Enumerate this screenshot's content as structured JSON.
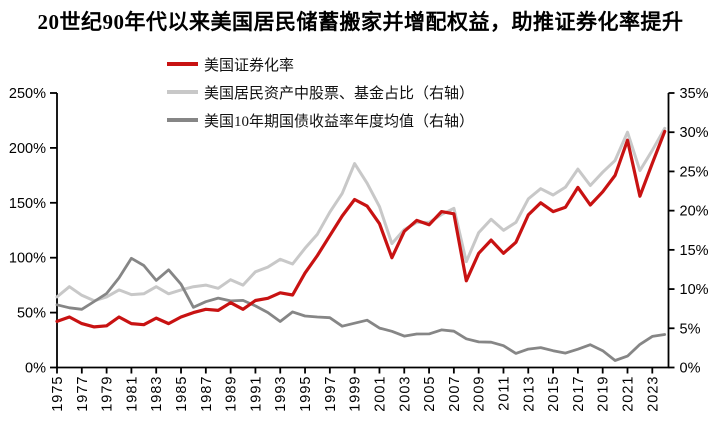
{
  "title": "20世纪90年代以来美国居民储蓄搬家并增配权益，助推证券化率提升",
  "colors": {
    "background": "#FFFFFF",
    "axis": "#000000",
    "series_red": "#C81212",
    "series_light_gray": "#C8C8C8",
    "series_dark_gray": "#868686"
  },
  "legend": {
    "items": [
      {
        "label": "美国证券化率"
      },
      {
        "label": "美国居民资产中股票、基金占比（右轴）"
      },
      {
        "label": "美国10年期国债收益率年度均值（右轴）"
      }
    ]
  },
  "chart_data": {
    "type": "line",
    "title": "20世纪90年代以来美国居民储蓄搬家并增配权益，助推证券化率提升",
    "xlabel": "",
    "ylabel": "",
    "grid": false,
    "legend_position": "top-left",
    "x": [
      1975,
      1976,
      1977,
      1978,
      1979,
      1980,
      1981,
      1982,
      1983,
      1984,
      1985,
      1986,
      1987,
      1988,
      1989,
      1990,
      1991,
      1992,
      1993,
      1994,
      1995,
      1996,
      1997,
      1998,
      1999,
      2000,
      2001,
      2002,
      2003,
      2004,
      2005,
      2006,
      2007,
      2008,
      2009,
      2010,
      2011,
      2012,
      2013,
      2014,
      2015,
      2016,
      2017,
      2018,
      2019,
      2020,
      2021,
      2022,
      2023,
      2024
    ],
    "x_tick_labels": [
      "1975",
      "1977",
      "1979",
      "1981",
      "1983",
      "1985",
      "1987",
      "1989",
      "1991",
      "1993",
      "1995",
      "1997",
      "1999",
      "2001",
      "2003",
      "2005",
      "2007",
      "2009",
      "2011",
      "2013",
      "2015",
      "2017",
      "2019",
      "2021",
      "2023"
    ],
    "left_axis": {
      "min": 0,
      "max": 250,
      "ticks": [
        0,
        50,
        100,
        150,
        200,
        250
      ],
      "suffix": "%"
    },
    "right_axis": {
      "min": 0,
      "max": 35,
      "ticks": [
        0,
        5,
        10,
        15,
        20,
        25,
        30,
        35
      ],
      "suffix": "%"
    },
    "series": [
      {
        "name": "美国证券化率",
        "axis": "left",
        "color": "#C81212",
        "stroke_width": 3.2,
        "z": 3,
        "values": [
          42,
          46,
          40,
          37,
          38,
          46,
          40,
          39,
          45,
          40,
          46,
          50,
          53,
          52,
          59,
          53,
          61,
          63,
          68,
          66,
          86,
          102,
          120,
          138,
          153,
          147,
          131,
          100,
          124,
          134,
          130,
          142,
          140,
          79,
          104,
          116,
          104,
          114,
          139,
          150,
          142,
          146,
          164,
          148,
          160,
          175,
          207,
          156,
          186,
          215
        ]
      },
      {
        "name": "美国居民资产中股票、基金占比（右轴）",
        "axis": "right",
        "color": "#C8C8C8",
        "stroke_width": 3,
        "z": 1,
        "values": [
          9,
          10.3,
          9.2,
          8.5,
          9,
          9.9,
          9.3,
          9.4,
          10.3,
          9.4,
          9.9,
          10.3,
          10.5,
          10.1,
          11.2,
          10.5,
          12.2,
          12.8,
          13.8,
          13.2,
          15.2,
          17,
          19.8,
          22.2,
          26,
          23.5,
          20.5,
          15.8,
          17.6,
          18.5,
          18.5,
          19.5,
          20.3,
          13.5,
          17.2,
          18.9,
          17.5,
          18.5,
          21.5,
          22.8,
          22,
          23,
          25.3,
          23.2,
          24.9,
          26.4,
          30,
          25.1,
          27.7,
          30.5
        ]
      },
      {
        "name": "美国10年期国债收益率年度均值（右轴）",
        "axis": "right",
        "color": "#868686",
        "stroke_width": 2.8,
        "z": 2,
        "values": [
          7.99,
          7.61,
          7.42,
          8.41,
          9.43,
          11.43,
          13.92,
          13.01,
          11.1,
          12.46,
          10.62,
          7.67,
          8.39,
          8.85,
          8.49,
          8.55,
          7.86,
          7.01,
          5.87,
          7.09,
          6.57,
          6.44,
          6.35,
          5.26,
          5.65,
          6.03,
          5.02,
          4.61,
          4.01,
          4.27,
          4.29,
          4.8,
          4.63,
          3.66,
          3.26,
          3.22,
          2.78,
          1.8,
          2.35,
          2.54,
          2.14,
          1.84,
          2.33,
          2.91,
          2.14,
          0.89,
          1.45,
          2.95,
          3.96,
          4.21
        ]
      }
    ]
  }
}
